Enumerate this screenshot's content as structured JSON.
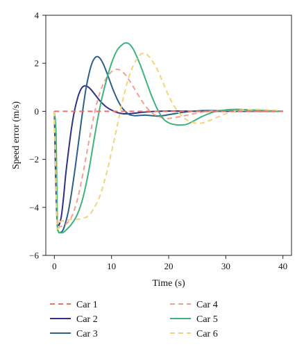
{
  "chart_data": {
    "type": "line",
    "xlabel": "Time (s)",
    "ylabel": "Speed error (m/s)",
    "xlim": [
      -1.5,
      41.5
    ],
    "ylim": [
      -6,
      4
    ],
    "xticks": [
      0,
      10,
      20,
      30,
      40
    ],
    "yticks": [
      -6,
      -4,
      -2,
      0,
      2,
      4
    ],
    "grid": false,
    "legend_position": "bottom",
    "series": [
      {
        "name": "Car 1",
        "color": "#e8716b",
        "dash": "dashed",
        "x": [
          0,
          40
        ],
        "y": [
          0,
          0
        ]
      },
      {
        "name": "Car 2",
        "color": "#2e2f86",
        "dash": "solid",
        "x": [
          0,
          0.2,
          0.4,
          0.6,
          0.8,
          1.2,
          1.6,
          2.0,
          2.5,
          3.0,
          3.5,
          4.0,
          4.5,
          5.0,
          5.5,
          6.0,
          6.5,
          7.0,
          7.5,
          8.0,
          9.0,
          10.0,
          11.0,
          12.0,
          13.0,
          14.0,
          15.0,
          16.0,
          17.0,
          18.0,
          20.0,
          22.0,
          25.0,
          30.0,
          35.0,
          40.0
        ],
        "y": [
          0,
          -2.5,
          -4.2,
          -4.8,
          -4.75,
          -4.4,
          -3.6,
          -2.6,
          -1.6,
          -0.7,
          0.0,
          0.5,
          0.85,
          1.03,
          1.06,
          1.0,
          0.88,
          0.73,
          0.58,
          0.43,
          0.2,
          0.05,
          -0.05,
          -0.1,
          -0.1,
          -0.08,
          -0.05,
          -0.03,
          -0.01,
          0.0,
          0.01,
          0.01,
          0.0,
          0.0,
          0.0,
          0.0
        ]
      },
      {
        "name": "Car 3",
        "color": "#2a5f8c",
        "dash": "solid",
        "x": [
          0,
          0.3,
          0.5,
          0.7,
          1.0,
          1.5,
          2.0,
          2.5,
          3.0,
          3.5,
          4.0,
          4.5,
          5.0,
          5.5,
          6.0,
          6.5,
          7.0,
          7.5,
          8.0,
          8.5,
          9.0,
          9.5,
          10.0,
          10.5,
          11.0,
          11.5,
          12.0,
          13.0,
          14.0,
          15.0,
          16.0,
          17.0,
          18.0,
          19.0,
          20.0,
          22.0,
          24.0,
          26.0,
          28.0,
          30.0,
          35.0,
          40.0
        ],
        "y": [
          0,
          -2.0,
          -4.6,
          -5.0,
          -5.05,
          -4.95,
          -4.6,
          -4.1,
          -3.4,
          -2.6,
          -1.7,
          -0.8,
          0.1,
          0.9,
          1.5,
          1.95,
          2.2,
          2.28,
          2.2,
          2.0,
          1.72,
          1.4,
          1.07,
          0.77,
          0.5,
          0.28,
          0.1,
          -0.12,
          -0.18,
          -0.17,
          -0.16,
          -0.18,
          -0.2,
          -0.18,
          -0.14,
          -0.06,
          0.0,
          0.03,
          0.03,
          0.02,
          0.0,
          0.0
        ]
      },
      {
        "name": "Car 4",
        "color": "#f3a08f",
        "dash": "dashed",
        "x": [
          0,
          0.3,
          0.6,
          1.0,
          2.0,
          3.0,
          4.0,
          5.0,
          6.0,
          7.0,
          8.0,
          9.0,
          10.0,
          10.5,
          11.0,
          11.5,
          12.0,
          12.5,
          13.0,
          14.0,
          15.0,
          16.0,
          17.0,
          18.0,
          19.0,
          20.0,
          22.0,
          24.0,
          26.0,
          28.0,
          30.0,
          33.0,
          36.0,
          40.0
        ],
        "y": [
          0,
          -3.0,
          -4.7,
          -4.8,
          -4.7,
          -4.4,
          -3.7,
          -2.6,
          -1.3,
          -0.1,
          0.8,
          1.35,
          1.65,
          1.73,
          1.75,
          1.72,
          1.63,
          1.5,
          1.33,
          0.95,
          0.55,
          0.2,
          -0.05,
          -0.2,
          -0.27,
          -0.3,
          -0.22,
          -0.12,
          -0.03,
          0.02,
          0.05,
          0.04,
          0.02,
          0.0
        ]
      },
      {
        "name": "Car 5",
        "color": "#3bb37c",
        "dash": "solid",
        "x": [
          0,
          0.3,
          0.5,
          0.7,
          1.0,
          1.5,
          2.0,
          3.0,
          4.0,
          5.0,
          6.0,
          7.0,
          8.0,
          9.0,
          10.0,
          11.0,
          12.0,
          12.5,
          13.0,
          13.5,
          14.0,
          15.0,
          16.0,
          17.0,
          18.0,
          19.0,
          20.0,
          21.0,
          22.0,
          23.0,
          24.0,
          25.0,
          26.0,
          28.0,
          30.0,
          32.0,
          35.0,
          40.0
        ],
        "y": [
          0,
          -1.0,
          -4.5,
          -5.0,
          -5.05,
          -5.05,
          -4.95,
          -4.7,
          -4.3,
          -3.6,
          -2.5,
          -1.1,
          0.2,
          1.2,
          2.0,
          2.55,
          2.8,
          2.85,
          2.82,
          2.7,
          2.5,
          1.95,
          1.3,
          0.65,
          0.1,
          -0.3,
          -0.48,
          -0.55,
          -0.57,
          -0.55,
          -0.45,
          -0.32,
          -0.2,
          -0.02,
          0.06,
          0.08,
          0.05,
          0.0
        ]
      },
      {
        "name": "Car 6",
        "color": "#f5d37a",
        "dash": "dashed",
        "x": [
          0,
          0.2,
          0.4,
          0.6,
          1.0,
          2.0,
          3.0,
          4.0,
          5.0,
          6.0,
          7.0,
          8.0,
          9.0,
          10.0,
          11.0,
          12.0,
          13.0,
          14.0,
          15.0,
          15.5,
          16.0,
          16.5,
          17.0,
          18.0,
          19.0,
          20.0,
          21.0,
          22.0,
          23.0,
          24.0,
          25.0,
          26.0,
          27.0,
          28.0,
          29.0,
          30.0,
          32.0,
          35.0,
          38.0,
          40.0
        ],
        "y": [
          0,
          -2.0,
          -4.2,
          -4.9,
          -4.6,
          -4.55,
          -4.5,
          -4.5,
          -4.45,
          -4.35,
          -4.0,
          -3.5,
          -2.7,
          -1.7,
          -0.6,
          0.5,
          1.4,
          2.0,
          2.35,
          2.42,
          2.4,
          2.3,
          2.15,
          1.75,
          1.2,
          0.65,
          0.2,
          -0.12,
          -0.33,
          -0.45,
          -0.5,
          -0.48,
          -0.4,
          -0.3,
          -0.2,
          -0.1,
          0.03,
          0.08,
          0.05,
          0.02
        ]
      }
    ]
  }
}
